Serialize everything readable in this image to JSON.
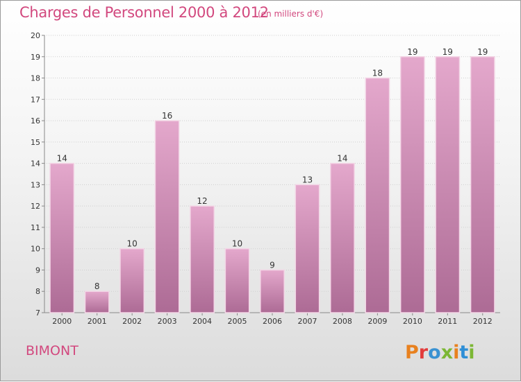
{
  "title": "Charges de Personnel 2000 à 2012",
  "unit_note": "(en milliers d'€)",
  "commune": "BIMONT",
  "logo_text": "Proxiti",
  "colors": {
    "title": "#d2487e",
    "bar_top": "#e4a8cc",
    "bar_bottom": "#ad6b95",
    "logo_letters": [
      "#e8811f",
      "#e23c3c",
      "#3a92d2",
      "#7cb735",
      "#e8811f",
      "#2f8fd6",
      "#7cb735"
    ]
  },
  "chart_data": {
    "type": "bar",
    "title": "Charges de Personnel 2000 à 2012",
    "categories": [
      "2000",
      "2001",
      "2002",
      "2003",
      "2004",
      "2005",
      "2006",
      "2007",
      "2008",
      "2009",
      "2010",
      "2011",
      "2012"
    ],
    "values": [
      14,
      8,
      10,
      16,
      12,
      10,
      9,
      13,
      14,
      18,
      19,
      19,
      19
    ],
    "ylim": [
      7,
      20
    ],
    "yticks": [
      7,
      8,
      9,
      10,
      11,
      12,
      13,
      14,
      15,
      16,
      17,
      18,
      19,
      20
    ],
    "grid": true,
    "xlabel": "",
    "ylabel": ""
  }
}
